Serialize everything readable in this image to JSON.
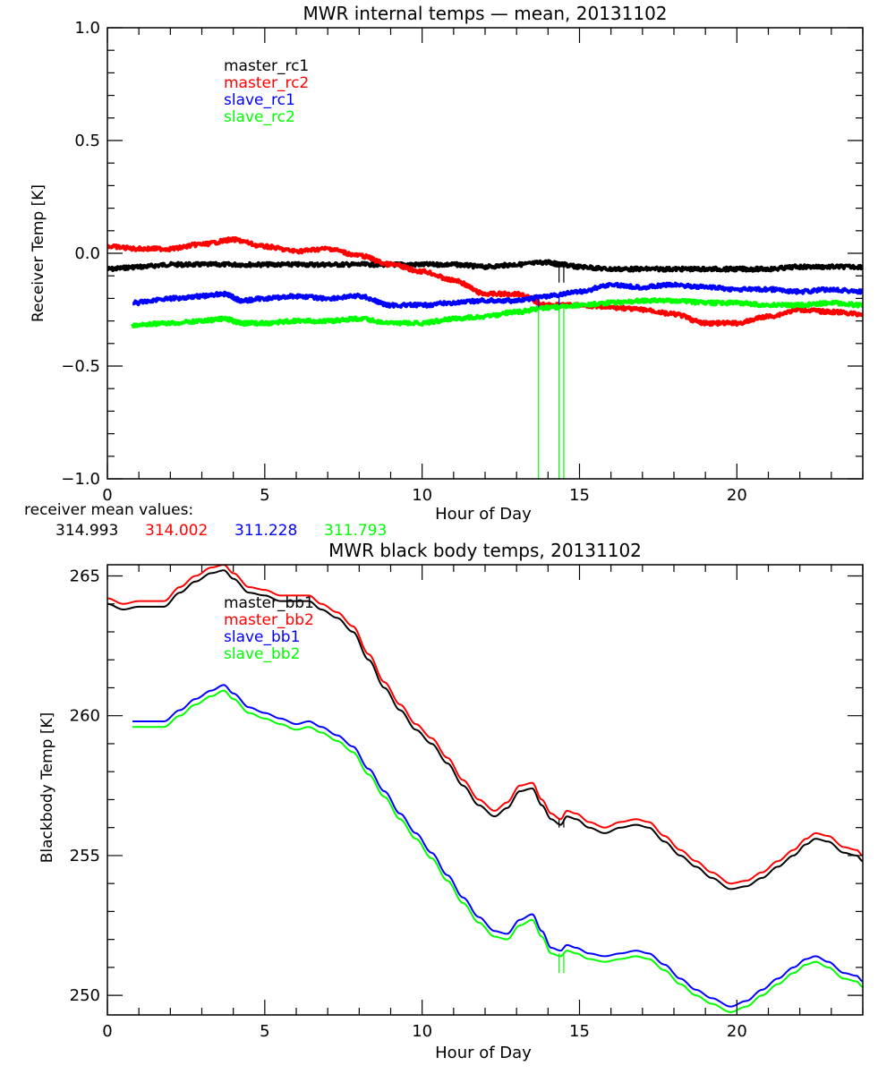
{
  "chart_data": [
    {
      "type": "line",
      "title": "MWR internal temps — mean, 20131102",
      "xlabel": "Hour of Day",
      "ylabel": "Receiver Temp [K]",
      "xlim": [
        0,
        24
      ],
      "ylim": [
        -1.0,
        1.0
      ],
      "xticks": [
        "0",
        "5",
        "10",
        "15",
        "20"
      ],
      "xtick_values": [
        0,
        5,
        10,
        15,
        20
      ],
      "yticks": [
        "-1.0",
        "-0.5",
        "0.0",
        "0.5",
        "1.0"
      ],
      "ytick_values": [
        -1.0,
        -0.5,
        0.0,
        0.5,
        1.0
      ],
      "legend_placement": "top-left",
      "noisy": true,
      "series": [
        {
          "name": "master_rc1",
          "color": "#000000",
          "x": [
            0,
            1,
            2,
            3,
            4,
            5,
            6,
            7,
            8,
            9,
            10,
            11,
            12,
            13,
            14,
            14.4,
            15,
            16,
            17,
            18,
            19,
            20,
            21,
            22,
            23,
            24
          ],
          "y": [
            -0.07,
            -0.06,
            -0.05,
            -0.05,
            -0.05,
            -0.05,
            -0.05,
            -0.05,
            -0.05,
            -0.05,
            -0.05,
            -0.05,
            -0.06,
            -0.05,
            -0.04,
            -0.05,
            -0.06,
            -0.07,
            -0.07,
            -0.07,
            -0.07,
            -0.07,
            -0.07,
            -0.06,
            -0.06,
            -0.06
          ]
        },
        {
          "name": "master_rc2",
          "color": "#ff0000",
          "x": [
            0,
            1,
            2,
            3,
            4,
            5,
            6,
            7,
            8,
            9,
            10,
            11,
            12,
            13,
            14,
            15,
            16,
            17,
            18,
            19,
            20,
            21,
            22,
            23,
            24
          ],
          "y": [
            0.03,
            0.02,
            0.02,
            0.04,
            0.06,
            0.03,
            0.01,
            0.02,
            -0.01,
            -0.05,
            -0.08,
            -0.12,
            -0.18,
            -0.18,
            -0.23,
            -0.23,
            -0.24,
            -0.25,
            -0.27,
            -0.31,
            -0.31,
            -0.28,
            -0.25,
            -0.26,
            -0.27
          ]
        },
        {
          "name": "slave_rc1",
          "color": "#0000ff",
          "x": [
            0.8,
            2,
            3,
            3.7,
            4.3,
            5,
            6,
            7,
            8,
            9,
            10,
            11,
            12,
            13,
            14,
            15,
            16,
            17,
            18,
            19,
            20,
            21,
            22,
            23,
            24
          ],
          "y": [
            -0.22,
            -0.2,
            -0.19,
            -0.18,
            -0.21,
            -0.2,
            -0.19,
            -0.2,
            -0.19,
            -0.23,
            -0.23,
            -0.22,
            -0.21,
            -0.21,
            -0.19,
            -0.17,
            -0.14,
            -0.15,
            -0.14,
            -0.15,
            -0.16,
            -0.16,
            -0.17,
            -0.16,
            -0.17
          ]
        },
        {
          "name": "slave_rc2",
          "color": "#00ff00",
          "x": [
            0.8,
            2,
            3,
            3.7,
            4.3,
            5,
            6,
            7,
            8,
            9,
            10,
            11,
            12,
            13,
            14,
            15,
            16,
            17,
            18,
            19,
            20,
            21,
            22,
            23,
            24
          ],
          "y": [
            -0.32,
            -0.31,
            -0.3,
            -0.29,
            -0.31,
            -0.31,
            -0.3,
            -0.3,
            -0.29,
            -0.31,
            -0.31,
            -0.29,
            -0.28,
            -0.26,
            -0.24,
            -0.23,
            -0.22,
            -0.21,
            -0.21,
            -0.22,
            -0.22,
            -0.23,
            -0.23,
            -0.22,
            -0.23
          ]
        }
      ],
      "spikes": [
        {
          "color": "#00ff00",
          "x": 13.7,
          "y_from": -0.24,
          "y_to": -1.0
        },
        {
          "color": "#00ff00",
          "x": 14.35,
          "y_from": -0.24,
          "y_to": -1.0
        },
        {
          "color": "#00ff00",
          "x": 14.5,
          "y_from": -0.24,
          "y_to": -1.0
        },
        {
          "color": "#000000",
          "x": 14.35,
          "y_from": -0.05,
          "y_to": -0.13
        },
        {
          "color": "#000000",
          "x": 14.5,
          "y_from": -0.05,
          "y_to": -0.13
        },
        {
          "color": "#0000ff",
          "x": 13.7,
          "y_from": -0.2,
          "y_to": -0.24
        },
        {
          "color": "#0000ff",
          "x": 14.35,
          "y_from": -0.19,
          "y_to": -0.23
        }
      ]
    },
    {
      "type": "line",
      "title": "MWR black body temps, 20131102",
      "xlabel": "Hour of Day",
      "ylabel": "Blackbody Temp [K]",
      "xlim": [
        0,
        24
      ],
      "ylim": [
        249.3,
        265.4
      ],
      "xticks": [
        "0",
        "5",
        "10",
        "15",
        "20"
      ],
      "xtick_values": [
        0,
        5,
        10,
        15,
        20
      ],
      "yticks": [
        "250",
        "255",
        "260",
        "265"
      ],
      "ytick_values": [
        250,
        255,
        260,
        265
      ],
      "legend_placement": "top-left",
      "noisy": false,
      "series": [
        {
          "name": "master_bb1",
          "color": "#000000",
          "x": [
            0,
            0.5,
            1,
            1.8,
            2.3,
            2.8,
            3.3,
            3.7,
            4.0,
            4.5,
            5.0,
            5.5,
            6.0,
            6.4,
            6.8,
            7.3,
            7.8,
            8.3,
            8.8,
            9.3,
            9.8,
            10.3,
            10.8,
            11.3,
            11.8,
            12.3,
            12.7,
            13.1,
            13.5,
            13.8,
            14.1,
            14.4,
            14.6,
            14.9,
            15.3,
            15.8,
            16.3,
            16.8,
            17.2,
            17.7,
            18.2,
            18.7,
            19.2,
            19.8,
            20.3,
            20.8,
            21.3,
            21.8,
            22.2,
            22.5,
            22.9,
            23.4,
            23.8,
            24
          ],
          "y": [
            264.0,
            263.8,
            263.9,
            263.9,
            264.4,
            264.8,
            265.1,
            265.2,
            264.9,
            264.4,
            264.3,
            264.1,
            264.1,
            264.1,
            263.8,
            263.5,
            263.0,
            262.0,
            261.0,
            260.2,
            259.5,
            259.0,
            258.3,
            257.5,
            256.8,
            256.4,
            256.7,
            257.3,
            257.4,
            256.8,
            256.3,
            256.1,
            256.4,
            256.3,
            256.0,
            255.8,
            256.0,
            256.1,
            256.0,
            255.5,
            255.0,
            254.6,
            254.2,
            253.8,
            253.9,
            254.2,
            254.6,
            255.0,
            255.4,
            255.6,
            255.5,
            255.1,
            255.0,
            254.8
          ]
        },
        {
          "name": "master_bb2",
          "color": "#ff0000",
          "x": [
            0,
            0.5,
            1,
            1.8,
            2.3,
            2.8,
            3.3,
            3.7,
            4.0,
            4.5,
            5.0,
            5.5,
            6.0,
            6.4,
            6.8,
            7.3,
            7.8,
            8.3,
            8.8,
            9.3,
            9.8,
            10.3,
            10.8,
            11.3,
            11.8,
            12.3,
            12.7,
            13.1,
            13.5,
            13.8,
            14.1,
            14.4,
            14.6,
            14.9,
            15.3,
            15.8,
            16.3,
            16.8,
            17.2,
            17.7,
            18.2,
            18.7,
            19.2,
            19.8,
            20.3,
            20.8,
            21.3,
            21.8,
            22.2,
            22.5,
            22.9,
            23.4,
            23.8,
            24
          ],
          "y": [
            264.2,
            264.0,
            264.1,
            264.1,
            264.6,
            265.0,
            265.3,
            265.4,
            265.1,
            264.6,
            264.5,
            264.3,
            264.3,
            264.3,
            264.0,
            263.7,
            263.2,
            262.2,
            261.2,
            260.4,
            259.7,
            259.2,
            258.5,
            257.7,
            257.0,
            256.6,
            256.9,
            257.5,
            257.6,
            257.0,
            256.5,
            256.3,
            256.6,
            256.5,
            256.2,
            256.0,
            256.2,
            256.3,
            256.2,
            255.7,
            255.2,
            254.8,
            254.4,
            254.0,
            254.1,
            254.4,
            254.8,
            255.2,
            255.6,
            255.8,
            255.7,
            255.3,
            255.2,
            255.0
          ]
        },
        {
          "name": "slave_bb1",
          "color": "#0000ff",
          "x": [
            0.8,
            1.8,
            2.3,
            2.8,
            3.3,
            3.7,
            4.0,
            4.5,
            5.0,
            5.5,
            6.0,
            6.4,
            6.8,
            7.3,
            7.8,
            8.3,
            8.8,
            9.3,
            9.8,
            10.3,
            10.8,
            11.3,
            11.8,
            12.3,
            12.7,
            13.1,
            13.5,
            13.8,
            14.1,
            14.4,
            14.6,
            14.9,
            15.3,
            15.8,
            16.3,
            16.8,
            17.2,
            17.7,
            18.2,
            18.7,
            19.2,
            19.8,
            20.3,
            20.8,
            21.3,
            21.8,
            22.2,
            22.5,
            22.9,
            23.4,
            23.8,
            24
          ],
          "y": [
            259.8,
            259.8,
            260.2,
            260.6,
            260.9,
            261.1,
            260.8,
            260.3,
            260.1,
            259.9,
            259.7,
            259.8,
            259.6,
            259.3,
            258.9,
            258.1,
            257.3,
            256.5,
            255.8,
            255.1,
            254.3,
            253.5,
            252.8,
            252.3,
            252.2,
            252.7,
            252.9,
            252.3,
            251.7,
            251.6,
            251.8,
            251.7,
            251.5,
            251.4,
            251.5,
            251.6,
            251.5,
            251.1,
            250.6,
            250.2,
            249.9,
            249.6,
            249.8,
            250.2,
            250.6,
            251.0,
            251.3,
            251.4,
            251.2,
            250.8,
            250.7,
            250.5
          ]
        },
        {
          "name": "slave_bb2",
          "color": "#00ff00",
          "x": [
            0.8,
            1.8,
            2.3,
            2.8,
            3.3,
            3.7,
            4.0,
            4.5,
            5.0,
            5.5,
            6.0,
            6.4,
            6.8,
            7.3,
            7.8,
            8.3,
            8.8,
            9.3,
            9.8,
            10.3,
            10.8,
            11.3,
            11.8,
            12.3,
            12.7,
            13.1,
            13.5,
            13.8,
            14.1,
            14.4,
            14.6,
            14.9,
            15.3,
            15.8,
            16.3,
            16.8,
            17.2,
            17.7,
            18.2,
            18.7,
            19.2,
            19.8,
            20.3,
            20.8,
            21.3,
            21.8,
            22.2,
            22.5,
            22.9,
            23.4,
            23.8,
            24
          ],
          "y": [
            259.6,
            259.6,
            260.0,
            260.4,
            260.7,
            260.9,
            260.6,
            260.1,
            259.9,
            259.7,
            259.5,
            259.6,
            259.4,
            259.1,
            258.7,
            257.9,
            257.1,
            256.3,
            255.6,
            254.9,
            254.1,
            253.3,
            252.6,
            252.1,
            252.0,
            252.5,
            252.7,
            252.1,
            251.5,
            251.4,
            251.6,
            251.5,
            251.3,
            251.2,
            251.3,
            251.4,
            251.3,
            250.9,
            250.4,
            250.0,
            249.7,
            249.4,
            249.6,
            250.0,
            250.4,
            250.8,
            251.1,
            251.2,
            251.0,
            250.6,
            250.5,
            250.3
          ]
        }
      ],
      "spikes": [
        {
          "color": "#000000",
          "x": 14.35,
          "y_from": 256.3,
          "y_to": 256.0
        },
        {
          "color": "#000000",
          "x": 14.5,
          "y_from": 256.3,
          "y_to": 256.0
        },
        {
          "color": "#00ff00",
          "x": 14.35,
          "y_from": 251.5,
          "y_to": 250.8
        },
        {
          "color": "#00ff00",
          "x": 14.5,
          "y_from": 251.5,
          "y_to": 250.8
        }
      ]
    }
  ],
  "receiver_mean": {
    "label": "receiver mean values:",
    "values": [
      {
        "text": "314.993",
        "color": "#000000"
      },
      {
        "text": "314.002",
        "color": "#ff0000"
      },
      {
        "text": "311.228",
        "color": "#0000ff"
      },
      {
        "text": "311.793",
        "color": "#00ff00"
      }
    ]
  }
}
